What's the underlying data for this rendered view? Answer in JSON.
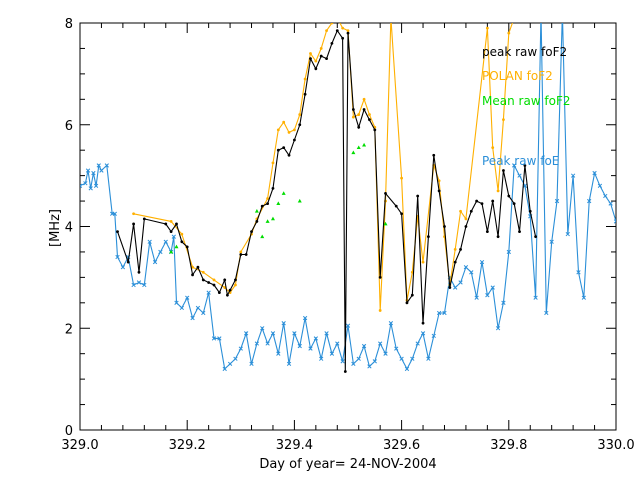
{
  "chart_data": {
    "type": "line",
    "title": "",
    "xlabel": "Day of year= 24-NOV-2004",
    "ylabel": "[MHz]",
    "xlim": [
      329.0,
      330.0
    ],
    "ylim": [
      0,
      8
    ],
    "x_ticks": [
      329.0,
      329.2,
      329.4,
      329.6,
      329.8,
      330.0
    ],
    "x_tick_labels": [
      "329.0",
      "329.2",
      "329.4",
      "329.6",
      "329.8",
      "330.0"
    ],
    "y_ticks": [
      0,
      2,
      4,
      6,
      8
    ],
    "y_tick_labels": [
      "0",
      "2",
      "4",
      "6",
      "8"
    ],
    "legend_position": "top-right",
    "series": [
      {
        "name": "peak raw foF2",
        "color": "#000000",
        "style": "line-markers",
        "points": [
          [
            329.07,
            3.9
          ],
          [
            329.09,
            3.3
          ],
          [
            329.1,
            4.05
          ],
          [
            329.11,
            3.1
          ],
          [
            329.12,
            4.15
          ],
          [
            329.16,
            4.05
          ],
          [
            329.17,
            3.9
          ],
          [
            329.18,
            4.05
          ],
          [
            329.19,
            3.7
          ],
          [
            329.2,
            3.6
          ],
          [
            329.21,
            3.05
          ],
          [
            329.22,
            3.2
          ],
          [
            329.23,
            2.95
          ],
          [
            329.24,
            2.9
          ],
          [
            329.25,
            2.85
          ],
          [
            329.26,
            2.7
          ],
          [
            329.27,
            2.95
          ],
          [
            329.275,
            2.65
          ],
          [
            329.28,
            2.75
          ],
          [
            329.29,
            2.95
          ],
          [
            329.3,
            3.45
          ],
          [
            329.31,
            3.45
          ],
          [
            329.32,
            3.9
          ],
          [
            329.33,
            4.1
          ],
          [
            329.34,
            4.4
          ],
          [
            329.35,
            4.45
          ],
          [
            329.36,
            4.75
          ],
          [
            329.37,
            5.5
          ],
          [
            329.38,
            5.55
          ],
          [
            329.39,
            5.4
          ],
          [
            329.4,
            5.7
          ],
          [
            329.41,
            6.0
          ],
          [
            329.42,
            6.6
          ],
          [
            329.43,
            7.3
          ],
          [
            329.44,
            7.1
          ],
          [
            329.45,
            7.35
          ],
          [
            329.46,
            7.3
          ],
          [
            329.47,
            7.6
          ],
          [
            329.48,
            7.85
          ],
          [
            329.49,
            7.7
          ],
          [
            329.495,
            1.15
          ],
          [
            329.5,
            7.8
          ],
          [
            329.51,
            6.3
          ],
          [
            329.52,
            5.95
          ],
          [
            329.53,
            6.3
          ],
          [
            329.54,
            6.1
          ],
          [
            329.55,
            5.9
          ],
          [
            329.56,
            3.0
          ],
          [
            329.57,
            4.65
          ],
          [
            329.59,
            4.4
          ],
          [
            329.6,
            4.25
          ],
          [
            329.61,
            2.5
          ],
          [
            329.62,
            2.65
          ],
          [
            329.63,
            4.6
          ],
          [
            329.64,
            2.1
          ],
          [
            329.65,
            3.8
          ],
          [
            329.66,
            5.4
          ],
          [
            329.67,
            4.7
          ],
          [
            329.68,
            4.0
          ],
          [
            329.69,
            2.8
          ],
          [
            329.7,
            3.3
          ],
          [
            329.71,
            3.55
          ],
          [
            329.72,
            4.0
          ],
          [
            329.73,
            4.3
          ],
          [
            329.74,
            4.5
          ],
          [
            329.75,
            4.45
          ],
          [
            329.76,
            3.9
          ],
          [
            329.77,
            4.5
          ],
          [
            329.78,
            3.8
          ],
          [
            329.79,
            5.1
          ],
          [
            329.8,
            4.6
          ],
          [
            329.81,
            4.45
          ],
          [
            329.82,
            3.9
          ],
          [
            329.83,
            5.2
          ],
          [
            329.84,
            4.3
          ],
          [
            329.85,
            3.8
          ]
        ]
      },
      {
        "name": "POLAN foF2",
        "color": "#ffb000",
        "style": "line-markers",
        "points": [
          [
            329.1,
            4.25
          ],
          [
            329.17,
            4.1
          ],
          [
            329.19,
            3.85
          ],
          [
            329.21,
            3.2
          ],
          [
            329.23,
            3.1
          ],
          [
            329.25,
            2.95
          ],
          [
            329.27,
            2.8
          ],
          [
            329.28,
            2.7
          ],
          [
            329.29,
            2.85
          ],
          [
            329.3,
            3.5
          ],
          [
            329.32,
            3.85
          ],
          [
            329.33,
            4.15
          ],
          [
            329.35,
            4.55
          ],
          [
            329.36,
            5.25
          ],
          [
            329.37,
            5.9
          ],
          [
            329.38,
            6.05
          ],
          [
            329.39,
            5.85
          ],
          [
            329.4,
            5.9
          ],
          [
            329.41,
            6.2
          ],
          [
            329.42,
            6.9
          ],
          [
            329.43,
            7.4
          ],
          [
            329.44,
            7.25
          ],
          [
            329.45,
            7.5
          ],
          [
            329.46,
            7.85
          ],
          [
            329.47,
            8.0
          ],
          [
            329.48,
            8.1
          ],
          [
            329.49,
            7.9
          ],
          [
            329.5,
            7.85
          ],
          [
            329.51,
            6.15
          ],
          [
            329.52,
            6.2
          ],
          [
            329.53,
            6.5
          ],
          [
            329.54,
            6.2
          ],
          [
            329.55,
            5.95
          ],
          [
            329.56,
            2.35
          ],
          [
            329.57,
            4.5
          ],
          [
            329.58,
            8.1
          ],
          [
            329.6,
            4.95
          ],
          [
            329.61,
            2.55
          ],
          [
            329.62,
            3.1
          ],
          [
            329.63,
            4.2
          ],
          [
            329.64,
            3.3
          ],
          [
            329.66,
            5.2
          ],
          [
            329.67,
            4.9
          ],
          [
            329.68,
            3.8
          ],
          [
            329.69,
            2.85
          ],
          [
            329.7,
            3.55
          ],
          [
            329.71,
            4.3
          ],
          [
            329.72,
            4.15
          ],
          [
            329.76,
            7.9
          ],
          [
            329.77,
            5.55
          ],
          [
            329.78,
            4.7
          ],
          [
            329.79,
            6.1
          ],
          [
            329.8,
            7.8
          ],
          [
            329.81,
            8.1
          ]
        ]
      },
      {
        "name": "Mean raw foF2",
        "color": "#00dd00",
        "style": "markers",
        "points": [
          [
            329.17,
            3.5
          ],
          [
            329.18,
            3.6
          ],
          [
            329.33,
            4.3
          ],
          [
            329.34,
            3.8
          ],
          [
            329.35,
            4.1
          ],
          [
            329.36,
            4.15
          ],
          [
            329.37,
            4.45
          ],
          [
            329.38,
            4.65
          ],
          [
            329.41,
            4.5
          ],
          [
            329.51,
            5.45
          ],
          [
            329.52,
            5.55
          ],
          [
            329.53,
            5.6
          ],
          [
            329.57,
            4.05
          ]
        ]
      },
      {
        "name": "Peak raw foE",
        "color": "#2b8fd8",
        "style": "line-markers",
        "points": [
          [
            329.0,
            4.8
          ],
          [
            329.01,
            4.85
          ],
          [
            329.015,
            5.1
          ],
          [
            329.02,
            4.75
          ],
          [
            329.025,
            5.05
          ],
          [
            329.03,
            4.8
          ],
          [
            329.035,
            5.2
          ],
          [
            329.04,
            5.1
          ],
          [
            329.05,
            5.2
          ],
          [
            329.06,
            4.25
          ],
          [
            329.065,
            4.25
          ],
          [
            329.07,
            3.4
          ],
          [
            329.08,
            3.2
          ],
          [
            329.09,
            3.4
          ],
          [
            329.1,
            2.85
          ],
          [
            329.11,
            2.9
          ],
          [
            329.12,
            2.85
          ],
          [
            329.13,
            3.7
          ],
          [
            329.14,
            3.3
          ],
          [
            329.15,
            3.5
          ],
          [
            329.16,
            3.7
          ],
          [
            329.17,
            3.5
          ],
          [
            329.175,
            3.8
          ],
          [
            329.18,
            2.5
          ],
          [
            329.19,
            2.4
          ],
          [
            329.2,
            2.6
          ],
          [
            329.21,
            2.2
          ],
          [
            329.22,
            2.4
          ],
          [
            329.23,
            2.3
          ],
          [
            329.24,
            2.7
          ],
          [
            329.25,
            1.8
          ],
          [
            329.26,
            1.8
          ],
          [
            329.27,
            1.2
          ],
          [
            329.28,
            1.3
          ],
          [
            329.29,
            1.4
          ],
          [
            329.3,
            1.6
          ],
          [
            329.31,
            1.9
          ],
          [
            329.32,
            1.3
          ],
          [
            329.33,
            1.7
          ],
          [
            329.34,
            2.0
          ],
          [
            329.35,
            1.7
          ],
          [
            329.36,
            1.9
          ],
          [
            329.37,
            1.5
          ],
          [
            329.38,
            2.1
          ],
          [
            329.39,
            1.3
          ],
          [
            329.4,
            1.9
          ],
          [
            329.41,
            1.65
          ],
          [
            329.42,
            2.2
          ],
          [
            329.43,
            1.6
          ],
          [
            329.44,
            1.8
          ],
          [
            329.45,
            1.4
          ],
          [
            329.46,
            1.9
          ],
          [
            329.47,
            1.5
          ],
          [
            329.48,
            1.7
          ],
          [
            329.49,
            1.35
          ],
          [
            329.5,
            2.05
          ],
          [
            329.51,
            1.3
          ],
          [
            329.52,
            1.4
          ],
          [
            329.53,
            1.65
          ],
          [
            329.54,
            1.25
          ],
          [
            329.55,
            1.35
          ],
          [
            329.56,
            1.7
          ],
          [
            329.57,
            1.5
          ],
          [
            329.58,
            2.1
          ],
          [
            329.59,
            1.6
          ],
          [
            329.6,
            1.4
          ],
          [
            329.61,
            1.2
          ],
          [
            329.62,
            1.4
          ],
          [
            329.63,
            1.7
          ],
          [
            329.64,
            1.9
          ],
          [
            329.65,
            1.4
          ],
          [
            329.66,
            1.85
          ],
          [
            329.67,
            2.3
          ],
          [
            329.68,
            2.3
          ],
          [
            329.69,
            3.0
          ],
          [
            329.7,
            2.8
          ],
          [
            329.71,
            2.9
          ],
          [
            329.72,
            3.2
          ],
          [
            329.73,
            3.1
          ],
          [
            329.74,
            2.6
          ],
          [
            329.75,
            3.3
          ],
          [
            329.76,
            2.65
          ],
          [
            329.77,
            2.8
          ],
          [
            329.78,
            2.0
          ],
          [
            329.79,
            2.5
          ],
          [
            329.8,
            3.5
          ],
          [
            329.81,
            5.2
          ],
          [
            329.82,
            5.0
          ],
          [
            329.83,
            4.8
          ],
          [
            329.84,
            4.2
          ],
          [
            329.85,
            2.6
          ],
          [
            329.86,
            8.2
          ],
          [
            329.87,
            2.3
          ],
          [
            329.88,
            3.7
          ],
          [
            329.89,
            4.5
          ],
          [
            329.9,
            8.2
          ],
          [
            329.91,
            3.85
          ],
          [
            329.92,
            5.0
          ],
          [
            329.93,
            3.1
          ],
          [
            329.94,
            2.6
          ],
          [
            329.95,
            4.5
          ],
          [
            329.96,
            5.05
          ],
          [
            329.97,
            4.8
          ],
          [
            329.98,
            4.6
          ],
          [
            329.99,
            4.45
          ],
          [
            330.0,
            4.1
          ]
        ]
      }
    ]
  }
}
